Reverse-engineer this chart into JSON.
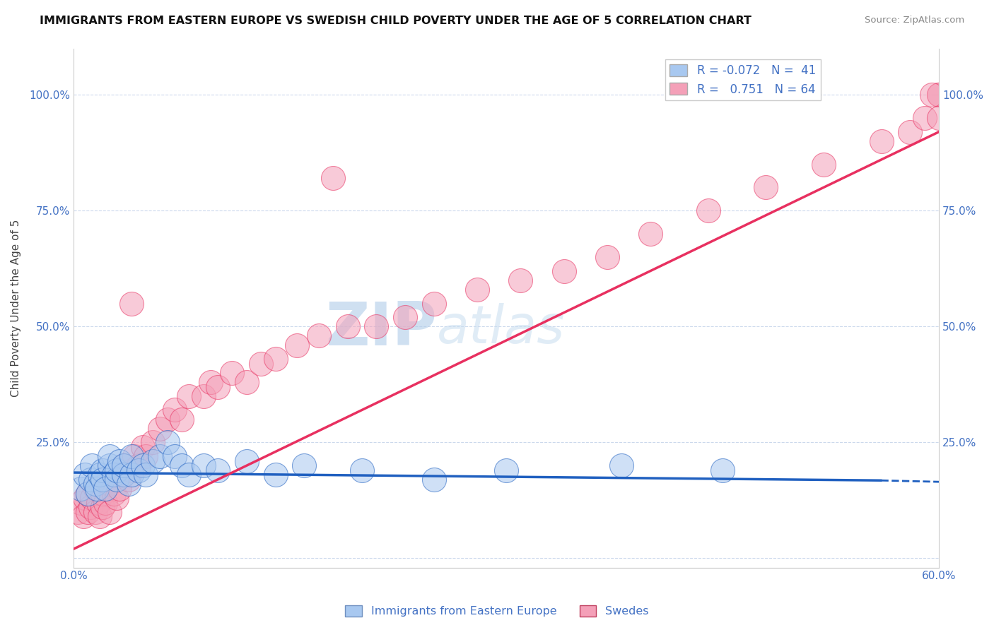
{
  "title": "IMMIGRANTS FROM EASTERN EUROPE VS SWEDISH CHILD POVERTY UNDER THE AGE OF 5 CORRELATION CHART",
  "source": "Source: ZipAtlas.com",
  "ylabel": "Child Poverty Under the Age of 5",
  "yticks": [
    0.0,
    0.25,
    0.5,
    0.75,
    1.0
  ],
  "ytick_labels": [
    "",
    "25.0%",
    "50.0%",
    "75.0%",
    "100.0%"
  ],
  "xlim": [
    0.0,
    0.6
  ],
  "ylim": [
    -0.02,
    1.1
  ],
  "legend_r1": "R = -0.072",
  "legend_n1": "N =  41",
  "legend_r2": "R =  0.751",
  "legend_n2": "N = 64",
  "color_blue": "#a8c8f0",
  "color_pink": "#f4a0b8",
  "color_blue_line": "#2060c0",
  "color_pink_line": "#e83060",
  "watermark_zip": "ZIP",
  "watermark_atlas": "atlas",
  "blue_points_x": [
    0.005,
    0.008,
    0.01,
    0.012,
    0.013,
    0.015,
    0.016,
    0.018,
    0.02,
    0.02,
    0.022,
    0.025,
    0.025,
    0.028,
    0.03,
    0.03,
    0.032,
    0.035,
    0.035,
    0.038,
    0.04,
    0.04,
    0.045,
    0.048,
    0.05,
    0.055,
    0.06,
    0.065,
    0.07,
    0.075,
    0.08,
    0.09,
    0.1,
    0.12,
    0.14,
    0.16,
    0.2,
    0.25,
    0.3,
    0.38,
    0.45
  ],
  "blue_points_y": [
    0.15,
    0.18,
    0.14,
    0.17,
    0.2,
    0.16,
    0.15,
    0.18,
    0.19,
    0.17,
    0.15,
    0.2,
    0.22,
    0.18,
    0.17,
    0.19,
    0.21,
    0.18,
    0.2,
    0.16,
    0.18,
    0.22,
    0.19,
    0.2,
    0.18,
    0.21,
    0.22,
    0.25,
    0.22,
    0.2,
    0.18,
    0.2,
    0.19,
    0.21,
    0.18,
    0.2,
    0.19,
    0.17,
    0.19,
    0.2,
    0.19
  ],
  "pink_points_x": [
    0.003,
    0.005,
    0.007,
    0.008,
    0.01,
    0.01,
    0.012,
    0.013,
    0.015,
    0.015,
    0.017,
    0.018,
    0.02,
    0.02,
    0.022,
    0.025,
    0.025,
    0.028,
    0.03,
    0.032,
    0.035,
    0.035,
    0.038,
    0.04,
    0.042,
    0.045,
    0.048,
    0.05,
    0.055,
    0.06,
    0.065,
    0.07,
    0.075,
    0.08,
    0.09,
    0.095,
    0.1,
    0.11,
    0.12,
    0.13,
    0.14,
    0.155,
    0.17,
    0.19,
    0.21,
    0.23,
    0.25,
    0.28,
    0.31,
    0.34,
    0.37,
    0.4,
    0.44,
    0.48,
    0.52,
    0.56,
    0.58,
    0.59,
    0.6,
    0.6,
    0.6,
    0.595,
    0.04,
    0.18
  ],
  "pink_points_y": [
    0.1,
    0.12,
    0.09,
    0.13,
    0.1,
    0.14,
    0.11,
    0.13,
    0.1,
    0.15,
    0.12,
    0.09,
    0.11,
    0.14,
    0.12,
    0.1,
    0.16,
    0.14,
    0.13,
    0.15,
    0.18,
    0.2,
    0.17,
    0.19,
    0.22,
    0.2,
    0.24,
    0.22,
    0.25,
    0.28,
    0.3,
    0.32,
    0.3,
    0.35,
    0.35,
    0.38,
    0.37,
    0.4,
    0.38,
    0.42,
    0.43,
    0.46,
    0.48,
    0.5,
    0.5,
    0.52,
    0.55,
    0.58,
    0.6,
    0.62,
    0.65,
    0.7,
    0.75,
    0.8,
    0.85,
    0.9,
    0.92,
    0.95,
    1.0,
    1.0,
    0.95,
    1.0,
    0.55,
    0.82
  ],
  "blue_line_x0": 0.0,
  "blue_line_x1": 0.56,
  "blue_line_xdash": 0.6,
  "blue_line_y0": 0.185,
  "blue_line_y1": 0.168,
  "blue_line_ydash": 0.165,
  "pink_line_x0": 0.0,
  "pink_line_x1": 0.6,
  "pink_line_y0": 0.02,
  "pink_line_y1": 0.92
}
